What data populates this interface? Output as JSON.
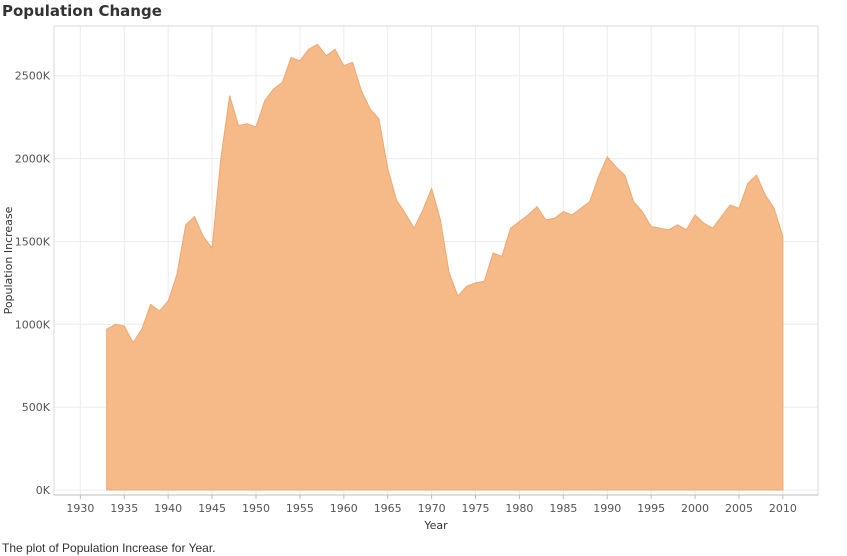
{
  "title": "Population Change",
  "caption": "The plot of Population Increase for Year.",
  "chart_data": {
    "type": "area",
    "title": "Population Change",
    "xlabel": "Year",
    "ylabel": "Population Increase",
    "xlim": [
      1927,
      2014
    ],
    "ylim": [
      -30000,
      2800000
    ],
    "x_ticks": [
      1930,
      1935,
      1940,
      1945,
      1950,
      1955,
      1960,
      1965,
      1970,
      1975,
      1980,
      1985,
      1990,
      1995,
      2000,
      2005,
      2010
    ],
    "y_ticks": [
      0,
      500000,
      1000000,
      1500000,
      2000000,
      2500000
    ],
    "y_tick_labels": [
      "0K",
      "500K",
      "1000K",
      "1500K",
      "2000K",
      "2500K"
    ],
    "grid": true,
    "color": "#F5BA87",
    "x": [
      1933,
      1934,
      1935,
      1936,
      1937,
      1938,
      1939,
      1940,
      1941,
      1942,
      1943,
      1944,
      1945,
      1946,
      1947,
      1948,
      1949,
      1950,
      1951,
      1952,
      1953,
      1954,
      1955,
      1956,
      1957,
      1958,
      1959,
      1960,
      1961,
      1962,
      1963,
      1964,
      1965,
      1966,
      1967,
      1968,
      1969,
      1970,
      1971,
      1972,
      1973,
      1974,
      1975,
      1976,
      1977,
      1978,
      1979,
      1980,
      1981,
      1982,
      1983,
      1984,
      1985,
      1986,
      1987,
      1988,
      1989,
      1990,
      1991,
      1992,
      1993,
      1994,
      1995,
      1996,
      1997,
      1998,
      1999,
      2000,
      2001,
      2002,
      2003,
      2004,
      2005,
      2006,
      2007,
      2008,
      2009,
      2010
    ],
    "values": [
      970000,
      1000000,
      990000,
      890000,
      970000,
      1120000,
      1080000,
      1140000,
      1300000,
      1600000,
      1650000,
      1530000,
      1460000,
      2000000,
      2380000,
      2200000,
      2210000,
      2190000,
      2350000,
      2420000,
      2460000,
      2610000,
      2590000,
      2660000,
      2690000,
      2620000,
      2660000,
      2560000,
      2580000,
      2410000,
      2300000,
      2240000,
      1940000,
      1750000,
      1670000,
      1580000,
      1690000,
      1820000,
      1630000,
      1310000,
      1170000,
      1230000,
      1250000,
      1260000,
      1430000,
      1410000,
      1580000,
      1620000,
      1660000,
      1710000,
      1630000,
      1640000,
      1680000,
      1660000,
      1700000,
      1740000,
      1890000,
      2010000,
      1950000,
      1900000,
      1740000,
      1680000,
      1590000,
      1580000,
      1570000,
      1600000,
      1570000,
      1660000,
      1610000,
      1580000,
      1650000,
      1720000,
      1700000,
      1850000,
      1900000,
      1780000,
      1700000,
      1530000
    ]
  }
}
